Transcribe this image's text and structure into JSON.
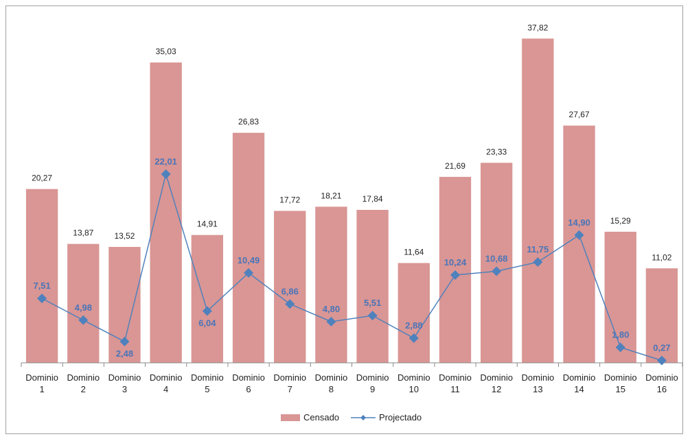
{
  "chart_data": {
    "type": "bar",
    "categories": [
      [
        "Dominio",
        "1"
      ],
      [
        "Dominio",
        "2"
      ],
      [
        "Dominio",
        "3"
      ],
      [
        "Dominio",
        "4"
      ],
      [
        "Dominio",
        "5"
      ],
      [
        "Dominio",
        "6"
      ],
      [
        "Dominio",
        "7"
      ],
      [
        "Dominio",
        "8"
      ],
      [
        "Dominio",
        "9"
      ],
      [
        "Dominio",
        "10"
      ],
      [
        "Dominio",
        "11"
      ],
      [
        "Dominio",
        "12"
      ],
      [
        "Dominio",
        "13"
      ],
      [
        "Dominio",
        "14"
      ],
      [
        "Dominio",
        "15"
      ],
      [
        "Dominio",
        "16"
      ]
    ],
    "series": [
      {
        "name": "Censado",
        "kind": "bar",
        "color": "#d99694",
        "values": [
          20.27,
          13.87,
          13.52,
          35.03,
          14.91,
          26.83,
          17.72,
          18.21,
          17.84,
          11.64,
          21.69,
          23.33,
          37.82,
          27.67,
          15.29,
          11.02
        ],
        "labels": [
          "20,27",
          "13,87",
          "13,52",
          "35,03",
          "14,91",
          "26,83",
          "17,72",
          "18,21",
          "17,84",
          "11,64",
          "21,69",
          "23,33",
          "37,82",
          "27,67",
          "15,29",
          "11,02"
        ]
      },
      {
        "name": "Projectado",
        "kind": "line",
        "color": "#4f81bd",
        "values": [
          7.51,
          4.98,
          2.48,
          22.01,
          6.04,
          10.49,
          6.86,
          4.8,
          5.51,
          2.88,
          10.24,
          10.68,
          11.75,
          14.9,
          1.8,
          0.27
        ],
        "labels": [
          "7,51",
          "4,98",
          "2,48",
          "22,01",
          "6,04",
          "10,49",
          "6,86",
          "4,80",
          "5,51",
          "2,88",
          "10,24",
          "10,68",
          "11,75",
          "14,90",
          "1,80",
          "0,27"
        ]
      }
    ],
    "ylim": [
      0,
      40
    ],
    "grid": false,
    "legend_position": "bottom-center",
    "title": "",
    "xlabel": "",
    "ylabel": ""
  }
}
